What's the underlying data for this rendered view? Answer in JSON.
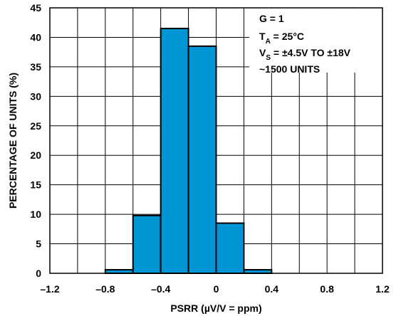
{
  "chart_data": {
    "type": "histogram",
    "title": "",
    "xlabel": "PSRR (µV/V = ppm)",
    "ylabel": "PERCENTAGE OF UNITS (%)",
    "xlim": [
      -1.2,
      1.2
    ],
    "ylim": [
      0,
      45
    ],
    "x_ticks": [
      "–1.2",
      "–0.8",
      "–0.4",
      "0",
      "0.4",
      "0.8",
      "1.2"
    ],
    "x_tick_values": [
      -1.2,
      -0.8,
      -0.4,
      0,
      0.4,
      0.8,
      1.2
    ],
    "x_grid_values": [
      -1.2,
      -1.0,
      -0.8,
      -0.6,
      -0.4,
      -0.2,
      0,
      0.2,
      0.4,
      0.6,
      0.8,
      1.0,
      1.2
    ],
    "y_ticks": [
      "0",
      "5",
      "10",
      "15",
      "20",
      "25",
      "30",
      "35",
      "40",
      "45"
    ],
    "y_tick_values": [
      0,
      5,
      10,
      15,
      20,
      25,
      30,
      35,
      40,
      45
    ],
    "grid": true,
    "bar_color": "#0096d6",
    "bins": [
      {
        "x0": -0.8,
        "x1": -0.6,
        "value": 0.6
      },
      {
        "x0": -0.6,
        "x1": -0.4,
        "value": 9.8
      },
      {
        "x0": -0.4,
        "x1": -0.2,
        "value": 41.5
      },
      {
        "x0": -0.2,
        "x1": 0.0,
        "value": 38.5
      },
      {
        "x0": 0.0,
        "x1": 0.2,
        "value": 8.5
      },
      {
        "x0": 0.2,
        "x1": 0.4,
        "value": 0.6
      }
    ],
    "legend_position": "top-right",
    "annotations": [
      {
        "text": "G = 1"
      },
      {
        "main": "T",
        "sub": "A",
        "rest": " = 25°C"
      },
      {
        "main": "V",
        "sub": "S",
        "rest": " = ±4.5V TO ±18V"
      },
      {
        "text": "~1500 UNITS"
      }
    ]
  }
}
